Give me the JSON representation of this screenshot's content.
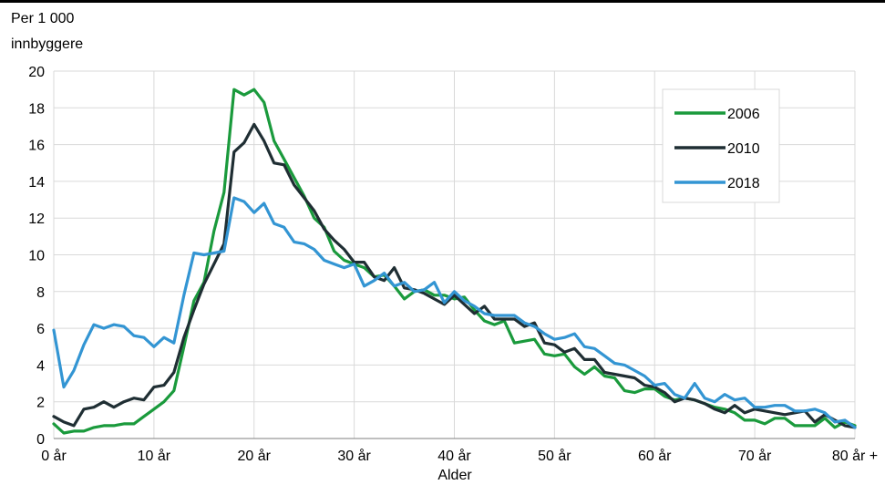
{
  "chart_data": {
    "type": "line",
    "ylabel": [
      "Per 1 000",
      "innbyggere"
    ],
    "xlabel": "Alder",
    "ylim": [
      0,
      20
    ],
    "yticks": [
      0,
      2,
      4,
      6,
      8,
      10,
      12,
      14,
      16,
      18,
      20
    ],
    "xlim": [
      0,
      80
    ],
    "xticks": [
      {
        "value": 0,
        "label": "0 år"
      },
      {
        "value": 10,
        "label": "10 år"
      },
      {
        "value": 20,
        "label": "20 år"
      },
      {
        "value": 30,
        "label": "30 år"
      },
      {
        "value": 40,
        "label": "40 år"
      },
      {
        "value": 50,
        "label": "50 år"
      },
      {
        "value": 60,
        "label": "60 år"
      },
      {
        "value": 70,
        "label": "70 år"
      },
      {
        "value": 80,
        "label": "80 år +"
      }
    ],
    "grid": true,
    "legend_position": "top-right",
    "series": [
      {
        "name": "2006",
        "color": "#1a9a3c",
        "values": [
          0.8,
          0.3,
          0.4,
          0.4,
          0.6,
          0.7,
          0.7,
          0.8,
          0.8,
          1.2,
          1.6,
          2.0,
          2.6,
          5.0,
          7.5,
          8.5,
          11.3,
          13.4,
          19.0,
          18.7,
          19.0,
          18.3,
          16.2,
          15.2,
          14.2,
          13.2,
          12.0,
          11.5,
          10.2,
          9.7,
          9.5,
          9.3,
          8.8,
          8.9,
          8.3,
          7.6,
          8.0,
          8.1,
          7.8,
          7.8,
          7.6,
          7.7,
          7.0,
          6.4,
          6.2,
          6.4,
          5.2,
          5.3,
          5.4,
          4.6,
          4.5,
          4.6,
          3.9,
          3.5,
          3.9,
          3.4,
          3.3,
          2.6,
          2.5,
          2.7,
          2.7,
          2.3,
          2.1,
          2.2,
          2.1,
          1.9,
          1.7,
          1.6,
          1.4,
          1.0,
          1.0,
          0.8,
          1.1,
          1.1,
          0.7,
          0.7,
          0.7,
          1.1,
          0.6,
          0.9,
          0.7
        ]
      },
      {
        "name": "2010",
        "color": "#1f2e33",
        "values": [
          1.2,
          0.9,
          0.7,
          1.6,
          1.7,
          2.0,
          1.7,
          2.0,
          2.2,
          2.1,
          2.8,
          2.9,
          3.6,
          5.5,
          7.0,
          8.4,
          9.5,
          10.6,
          15.6,
          16.1,
          17.1,
          16.2,
          15.0,
          14.9,
          13.8,
          13.1,
          12.4,
          11.4,
          10.8,
          10.3,
          9.6,
          9.6,
          8.8,
          8.6,
          9.3,
          8.2,
          8.1,
          7.9,
          7.6,
          7.3,
          7.8,
          7.3,
          6.8,
          7.2,
          6.5,
          6.5,
          6.5,
          6.1,
          6.3,
          5.2,
          5.1,
          4.7,
          4.9,
          4.3,
          4.3,
          3.6,
          3.5,
          3.4,
          3.3,
          2.9,
          2.8,
          2.5,
          2.0,
          2.2,
          2.1,
          1.9,
          1.6,
          1.4,
          1.8,
          1.4,
          1.6,
          1.5,
          1.4,
          1.3,
          1.4,
          1.5,
          0.9,
          1.3,
          1.0,
          0.7,
          0.6
        ]
      },
      {
        "name": "2018",
        "color": "#3395d3",
        "values": [
          5.9,
          2.8,
          3.7,
          5.1,
          6.2,
          6.0,
          6.2,
          6.1,
          5.6,
          5.5,
          5.0,
          5.5,
          5.2,
          7.8,
          10.1,
          10.0,
          10.1,
          10.2,
          13.1,
          12.9,
          12.3,
          12.8,
          11.7,
          11.5,
          10.7,
          10.6,
          10.3,
          9.7,
          9.5,
          9.3,
          9.5,
          8.3,
          8.6,
          9.0,
          8.3,
          8.5,
          8.0,
          8.1,
          8.5,
          7.4,
          8.0,
          7.5,
          7.2,
          6.8,
          6.7,
          6.7,
          6.7,
          6.3,
          6.1,
          5.7,
          5.4,
          5.5,
          5.7,
          5.0,
          4.9,
          4.5,
          4.1,
          4.0,
          3.7,
          3.4,
          2.9,
          3.0,
          2.4,
          2.2,
          3.0,
          2.2,
          2.0,
          2.4,
          2.1,
          2.2,
          1.7,
          1.7,
          1.8,
          1.8,
          1.5,
          1.5,
          1.6,
          1.4,
          0.9,
          1.0,
          0.6
        ]
      }
    ]
  }
}
